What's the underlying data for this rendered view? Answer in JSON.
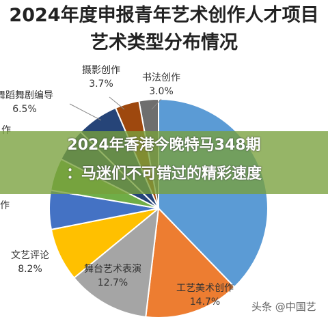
{
  "chart_data": {
    "type": "pie",
    "title_lines": [
      "2024年度申报青年艺术创作人才项目",
      "艺术类型分布情况"
    ],
    "slices": [
      {
        "label": "书法创作",
        "value": 3.0,
        "value_label": "3.0%",
        "color": "#6e6e6e"
      },
      {
        "label": "",
        "value": 39.4,
        "value_label": "",
        "color": "#5b9bd5"
      },
      {
        "label": "工艺美术创作",
        "value": 14.7,
        "value_label": "14.7%",
        "color": "#ed7d31"
      },
      {
        "label": "舞台艺术表演",
        "value": 12.7,
        "value_label": "12.7%",
        "color": "#a5a5a5"
      },
      {
        "label": "文艺评论",
        "value": 8.2,
        "value_label": "8.2%",
        "color": "#ffc000"
      },
      {
        "label": "",
        "value": 6.0,
        "value_label": "",
        "color": "#4472c4"
      },
      {
        "label": "",
        "value": 5.0,
        "value_label": "",
        "color": "#70ad47"
      },
      {
        "label": "",
        "value": 5.1,
        "value_label": "",
        "color": "#264478"
      },
      {
        "label": "舞蹈舞剧编导",
        "value": 6.5,
        "value_label": "6.5%",
        "color": "#264478"
      },
      {
        "label": "摄影创作",
        "value": 3.7,
        "value_label": "3.7%",
        "color": "#9e480e"
      }
    ],
    "partial_labels": [
      "作",
      "作"
    ]
  },
  "banner": {
    "line1": "2024年香港今晚特马348期",
    "line2": "：马迷们不可错过的精彩速度"
  },
  "watermark": "头条 @中国艺"
}
